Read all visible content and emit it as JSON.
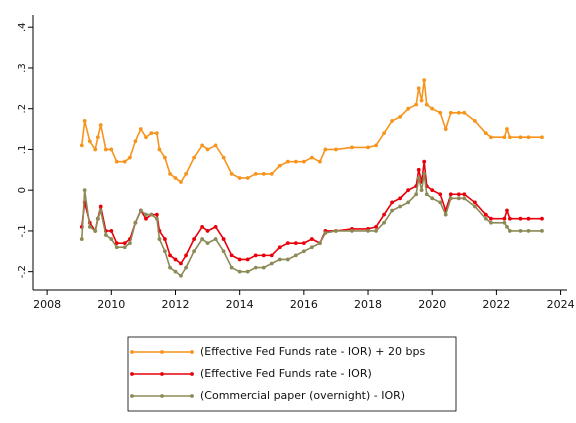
{
  "chart_data": {
    "type": "line",
    "x": [
      2009.08,
      2009.17,
      2009.33,
      2009.5,
      2009.58,
      2009.67,
      2009.83,
      2010.0,
      2010.17,
      2010.42,
      2010.58,
      2010.75,
      2010.92,
      2011.08,
      2011.25,
      2011.42,
      2011.5,
      2011.67,
      2011.83,
      2012.0,
      2012.17,
      2012.33,
      2012.58,
      2012.83,
      2013.0,
      2013.25,
      2013.5,
      2013.75,
      2014.0,
      2014.25,
      2014.5,
      2014.75,
      2015.0,
      2015.25,
      2015.5,
      2015.75,
      2016.0,
      2016.25,
      2016.5,
      2016.67,
      2017.0,
      2017.5,
      2018.0,
      2018.25,
      2018.5,
      2018.75,
      2019.0,
      2019.25,
      2019.5,
      2019.58,
      2019.67,
      2019.75,
      2019.83,
      2020.0,
      2020.25,
      2020.42,
      2020.58,
      2020.83,
      2021.0,
      2021.33,
      2021.67,
      2021.83,
      2022.25,
      2022.33,
      2022.42,
      2022.75,
      2023.0,
      2023.42
    ],
    "series": [
      {
        "name": "(Effective Fed Funds rate - IOR) + 20 bps",
        "color": "#f7941d",
        "values": [
          0.11,
          0.17,
          0.12,
          0.1,
          0.13,
          0.16,
          0.1,
          0.1,
          0.07,
          0.07,
          0.08,
          0.12,
          0.15,
          0.13,
          0.14,
          0.14,
          0.1,
          0.08,
          0.04,
          0.03,
          0.02,
          0.04,
          0.08,
          0.11,
          0.1,
          0.11,
          0.08,
          0.04,
          0.03,
          0.03,
          0.04,
          0.04,
          0.04,
          0.06,
          0.07,
          0.07,
          0.07,
          0.08,
          0.07,
          0.1,
          0.1,
          0.105,
          0.105,
          0.11,
          0.14,
          0.17,
          0.18,
          0.2,
          0.21,
          0.25,
          0.22,
          0.27,
          0.21,
          0.2,
          0.19,
          0.15,
          0.19,
          0.19,
          0.19,
          0.17,
          0.14,
          0.13,
          0.13,
          0.15,
          0.13,
          0.13,
          0.13,
          0.13
        ]
      },
      {
        "name": "(Effective Fed Funds rate - IOR)",
        "color": "#e8000b",
        "values": [
          -0.09,
          -0.03,
          -0.08,
          -0.1,
          -0.07,
          -0.04,
          -0.1,
          -0.1,
          -0.13,
          -0.13,
          -0.12,
          -0.08,
          -0.05,
          -0.07,
          -0.06,
          -0.06,
          -0.1,
          -0.12,
          -0.16,
          -0.17,
          -0.18,
          -0.16,
          -0.12,
          -0.09,
          -0.1,
          -0.09,
          -0.12,
          -0.16,
          -0.17,
          -0.17,
          -0.16,
          -0.16,
          -0.16,
          -0.14,
          -0.13,
          -0.13,
          -0.13,
          -0.12,
          -0.13,
          -0.1,
          -0.1,
          -0.095,
          -0.095,
          -0.09,
          -0.06,
          -0.03,
          -0.02,
          0,
          0.01,
          0.05,
          0.02,
          0.07,
          0.01,
          0,
          -0.01,
          -0.05,
          -0.01,
          -0.01,
          -0.01,
          -0.03,
          -0.06,
          -0.07,
          -0.07,
          -0.05,
          -0.07,
          -0.07,
          -0.07,
          -0.07
        ]
      },
      {
        "name": "(Commercial paper (overnight) - IOR)",
        "color": "#8c8a56",
        "values": [
          -0.12,
          0,
          -0.09,
          -0.1,
          -0.07,
          -0.05,
          -0.11,
          -0.12,
          -0.14,
          -0.14,
          -0.13,
          -0.08,
          -0.05,
          -0.06,
          -0.06,
          -0.07,
          -0.12,
          -0.15,
          -0.19,
          -0.2,
          -0.21,
          -0.19,
          -0.15,
          -0.12,
          -0.13,
          -0.12,
          -0.15,
          -0.19,
          -0.2,
          -0.2,
          -0.19,
          -0.19,
          -0.18,
          -0.17,
          -0.17,
          -0.16,
          -0.15,
          -0.14,
          -0.13,
          -0.105,
          -0.1,
          -0.1,
          -0.1,
          -0.1,
          -0.08,
          -0.05,
          -0.04,
          -0.03,
          -0.01,
          0.03,
          0,
          0.04,
          -0.01,
          -0.02,
          -0.03,
          -0.06,
          -0.02,
          -0.02,
          -0.02,
          -0.04,
          -0.07,
          -0.08,
          -0.08,
          -0.09,
          -0.1,
          -0.1,
          -0.1,
          -0.1
        ]
      }
    ],
    "xlim": [
      2007.56,
      2024.2
    ],
    "xticks": [
      2008,
      2010,
      2012,
      2014,
      2016,
      2018,
      2020,
      2022,
      2024
    ],
    "ylim": [
      -0.245,
      0.43
    ],
    "yticks": [
      {
        "value": -0.2,
        "label": "-.2"
      },
      {
        "value": -0.1,
        "label": "-.1"
      },
      0,
      {
        "value": 0.1,
        "label": ".1"
      },
      {
        "value": 0.2,
        "label": ".2"
      },
      {
        "value": 0.3,
        "label": ".3"
      },
      {
        "value": 0.4,
        "label": ".4"
      }
    ],
    "grid": false,
    "legend": "bottom"
  }
}
